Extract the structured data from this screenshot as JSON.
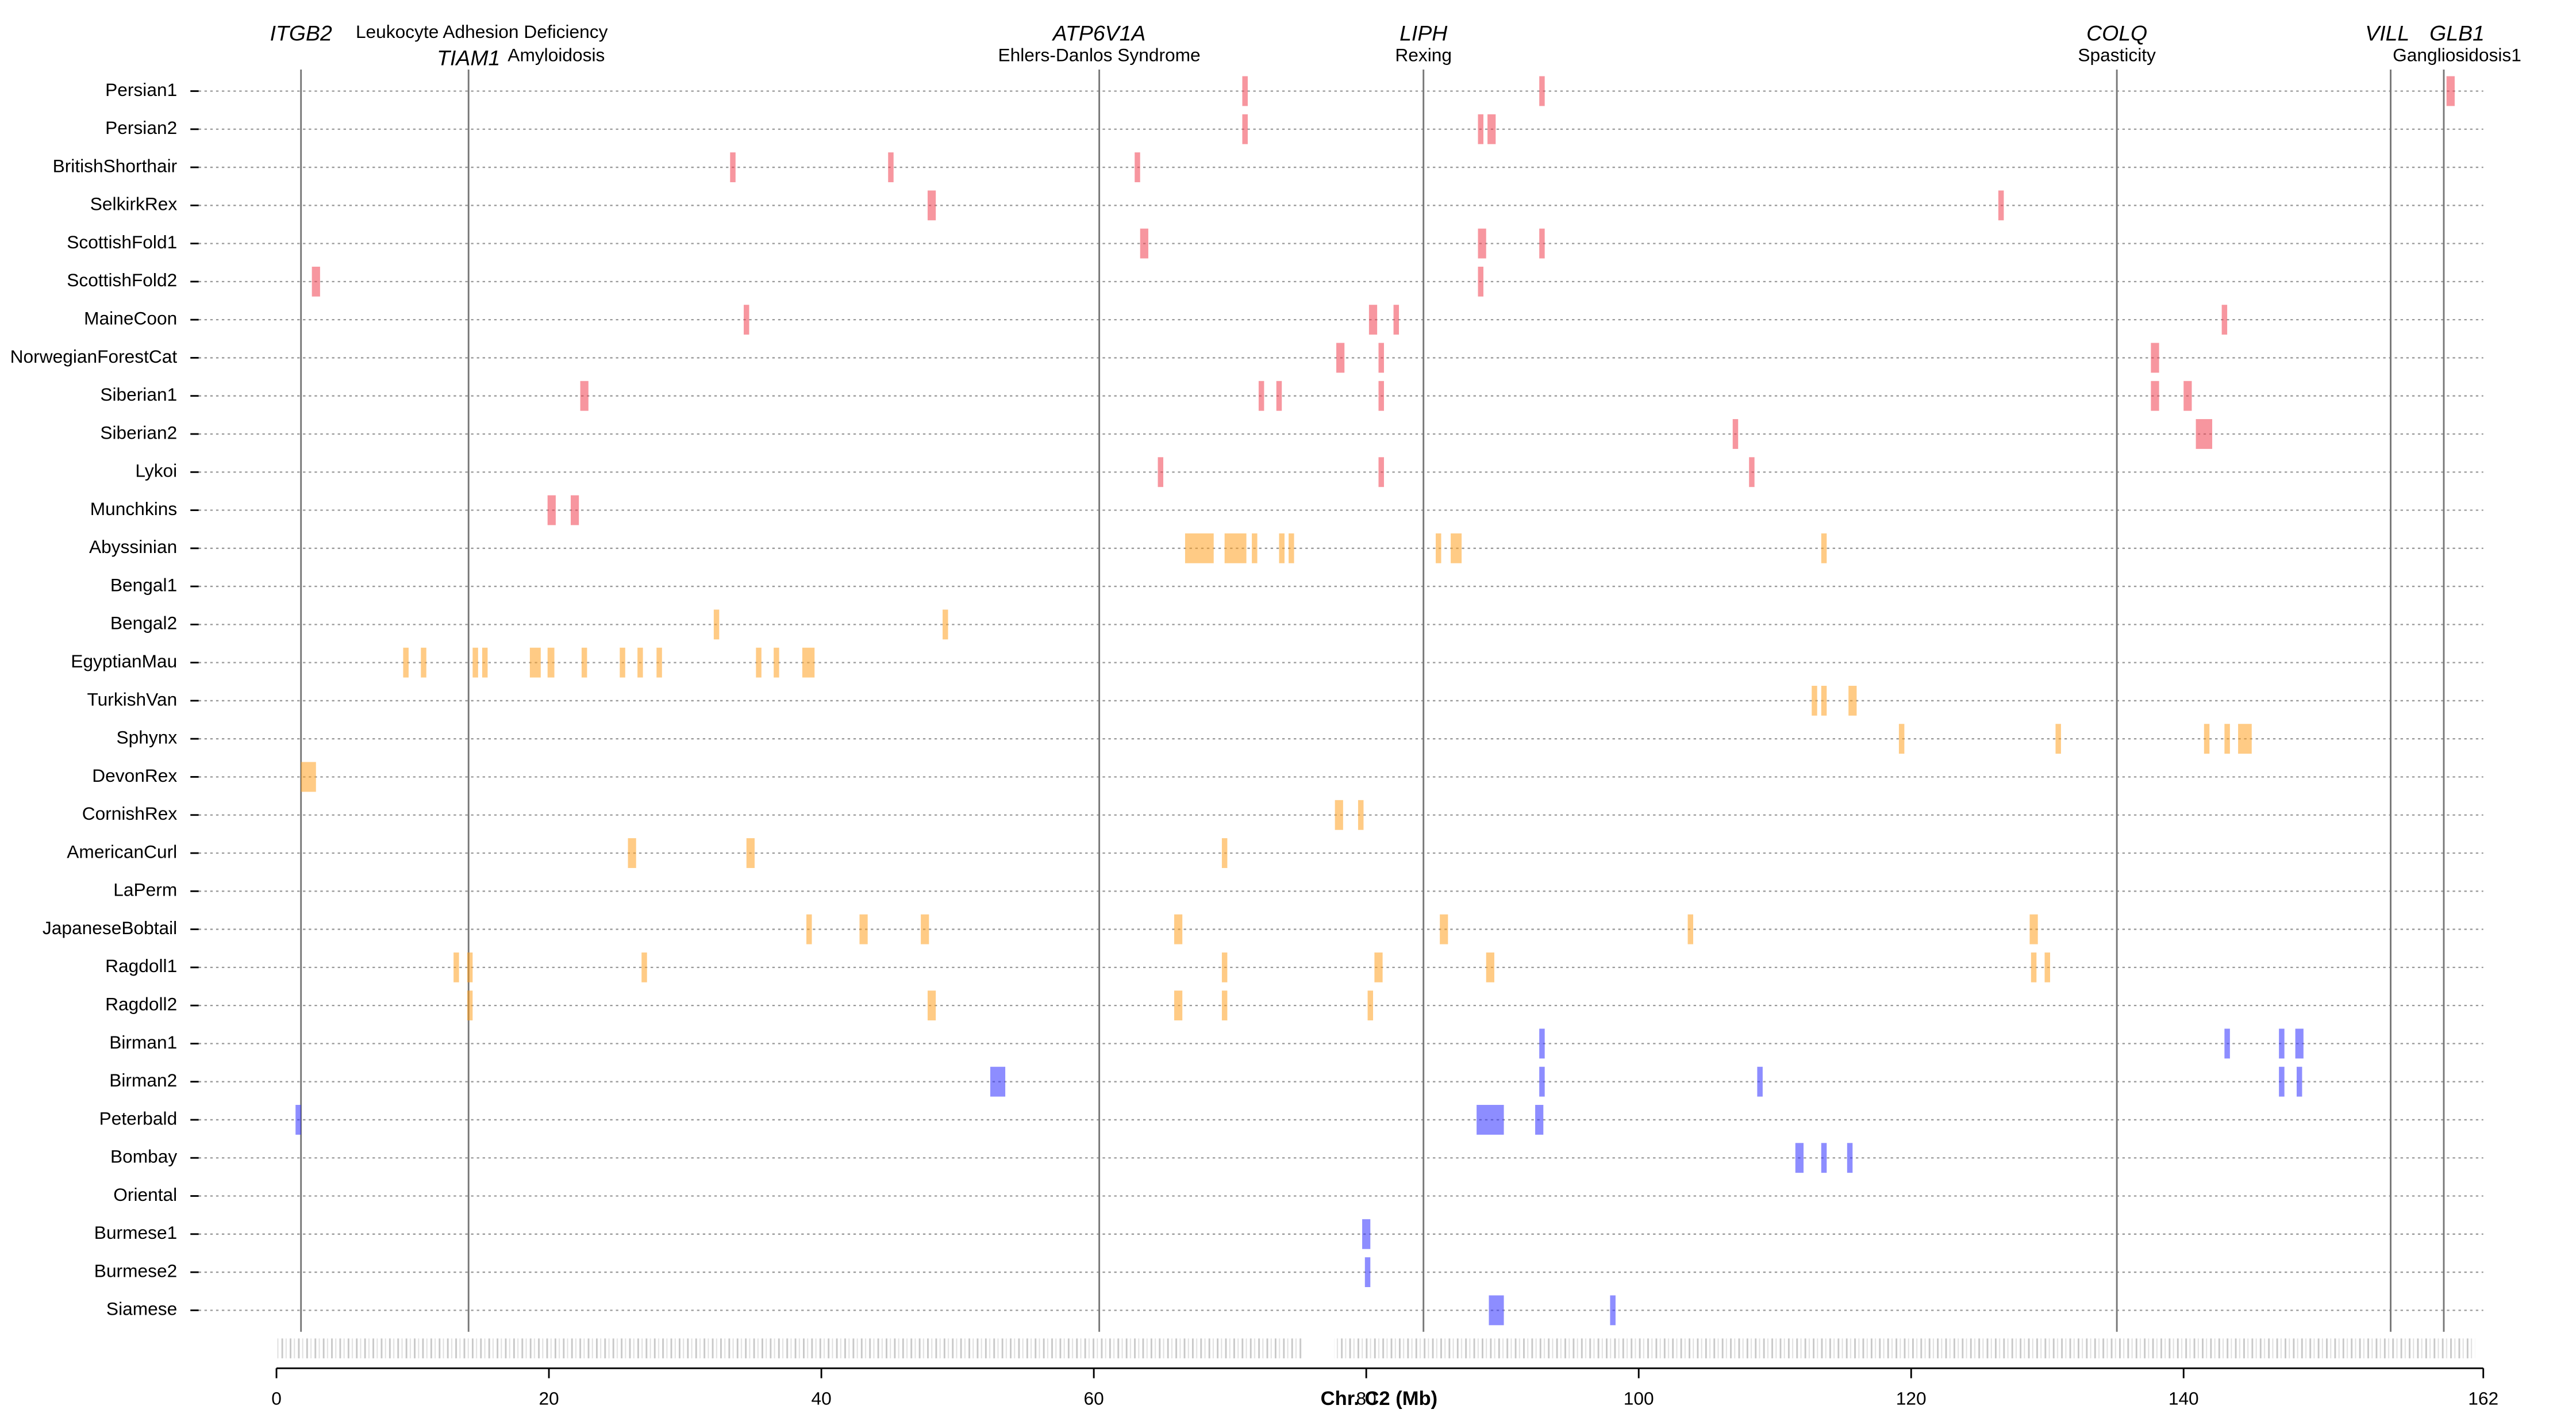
{
  "chart_data": {
    "type": "segments",
    "xlabel": "Chr. C2 (Mb)",
    "xlim": [
      0,
      162
    ],
    "xticks": [
      0,
      20,
      40,
      60,
      80,
      100,
      120,
      140,
      162
    ],
    "genes": [
      {
        "name": "ITGB2",
        "position": 1.8,
        "disease": "Leukocyte Adhesion Deficiency"
      },
      {
        "name": "TIAM1",
        "position": 14.1,
        "disease": "Amyloidosis"
      },
      {
        "name": "ATP6V1A",
        "position": 60.4,
        "disease": "Ehlers-Danlos Syndrome"
      },
      {
        "name": "LIPH",
        "position": 84.2,
        "disease": "Rexing"
      },
      {
        "name": "COLQ",
        "position": 135.1,
        "disease": "Spasticity"
      },
      {
        "name": "VILL",
        "position": 155.2
      },
      {
        "name": "GLB1",
        "position": 159.1,
        "disease": "Gangliosidosis1"
      }
    ],
    "rows": [
      {
        "name": "Persian1",
        "color": "#f04050",
        "segments": [
          [
            70.9,
            71.3
          ],
          [
            92.7,
            93.1
          ],
          [
            159.3,
            159.9
          ]
        ]
      },
      {
        "name": "Persian2",
        "color": "#f04050",
        "segments": [
          [
            70.9,
            71.3
          ],
          [
            88.2,
            88.6
          ],
          [
            88.9,
            89.5
          ]
        ]
      },
      {
        "name": "BritishShorthair",
        "color": "#f04050",
        "segments": [
          [
            33.3,
            33.7
          ],
          [
            44.9,
            45.3
          ],
          [
            63.0,
            63.4
          ]
        ]
      },
      {
        "name": "SelkirkRex",
        "color": "#f04050",
        "segments": [
          [
            47.8,
            48.4
          ],
          [
            126.4,
            126.8
          ]
        ]
      },
      {
        "name": "ScottishFold1",
        "color": "#f04050",
        "segments": [
          [
            63.4,
            64.0
          ],
          [
            88.2,
            88.8
          ],
          [
            92.7,
            93.1
          ]
        ]
      },
      {
        "name": "ScottishFold2",
        "color": "#f04050",
        "segments": [
          [
            2.6,
            3.2
          ],
          [
            88.2,
            88.6
          ]
        ]
      },
      {
        "name": "MaineCoon",
        "color": "#f04050",
        "segments": [
          [
            34.3,
            34.7
          ],
          [
            80.2,
            80.8
          ],
          [
            82.0,
            82.4
          ],
          [
            142.8,
            143.2
          ]
        ]
      },
      {
        "name": "NorwegianForestCat",
        "color": "#f04050",
        "segments": [
          [
            77.8,
            78.4
          ],
          [
            80.9,
            81.3
          ],
          [
            137.6,
            138.2
          ]
        ]
      },
      {
        "name": "Siberian1",
        "color": "#f04050",
        "segments": [
          [
            22.3,
            22.9
          ],
          [
            72.1,
            72.5
          ],
          [
            73.4,
            73.8
          ],
          [
            80.9,
            81.3
          ],
          [
            137.6,
            138.2
          ],
          [
            140.0,
            140.6
          ]
        ]
      },
      {
        "name": "Siberian2",
        "color": "#f04050",
        "segments": [
          [
            106.9,
            107.3
          ],
          [
            140.9,
            142.1
          ]
        ]
      },
      {
        "name": "Lykoi",
        "color": "#f04050",
        "segments": [
          [
            64.7,
            65.1
          ],
          [
            80.9,
            81.3
          ],
          [
            108.1,
            108.5
          ]
        ]
      },
      {
        "name": "Munchkins",
        "color": "#f04050",
        "segments": [
          [
            19.9,
            20.5
          ],
          [
            21.6,
            22.2
          ]
        ]
      },
      {
        "name": "Abyssinian",
        "color": "#ffa020",
        "segments": [
          [
            66.7,
            68.8
          ],
          [
            69.6,
            71.2
          ],
          [
            71.6,
            72.0
          ],
          [
            73.6,
            74.0
          ],
          [
            74.3,
            74.7
          ],
          [
            85.1,
            85.5
          ],
          [
            86.2,
            87.0
          ],
          [
            113.4,
            113.8
          ]
        ]
      },
      {
        "name": "Bengal1",
        "color": "#ffa020",
        "segments": []
      },
      {
        "name": "Bengal2",
        "color": "#ffa020",
        "segments": [
          [
            32.1,
            32.5
          ],
          [
            48.9,
            49.3
          ]
        ]
      },
      {
        "name": "EgyptianMau",
        "color": "#ffa020",
        "segments": [
          [
            9.3,
            9.7
          ],
          [
            10.6,
            11.0
          ],
          [
            14.4,
            14.8
          ],
          [
            15.1,
            15.5
          ],
          [
            18.6,
            19.4
          ],
          [
            19.9,
            20.4
          ],
          [
            22.4,
            22.8
          ],
          [
            25.2,
            25.6
          ],
          [
            26.5,
            26.9
          ],
          [
            27.9,
            28.3
          ],
          [
            35.2,
            35.6
          ],
          [
            36.5,
            36.9
          ],
          [
            38.6,
            39.5
          ]
        ]
      },
      {
        "name": "TurkishVan",
        "color": "#ffa020",
        "segments": [
          [
            112.7,
            113.1
          ],
          [
            113.4,
            113.8
          ],
          [
            115.4,
            116.0
          ]
        ]
      },
      {
        "name": "Sphynx",
        "color": "#ffa020",
        "segments": [
          [
            119.1,
            119.5
          ],
          [
            130.6,
            131.0
          ],
          [
            141.5,
            141.9
          ],
          [
            143.0,
            143.4
          ],
          [
            144.0,
            145.0
          ]
        ]
      },
      {
        "name": "DevonRex",
        "color": "#ffa020",
        "segments": [
          [
            1.8,
            2.9
          ]
        ]
      },
      {
        "name": "CornishRex",
        "color": "#ffa020",
        "segments": [
          [
            77.7,
            78.3
          ],
          [
            79.4,
            79.8
          ]
        ]
      },
      {
        "name": "AmericanCurl",
        "color": "#ffa020",
        "segments": [
          [
            25.8,
            26.4
          ],
          [
            34.5,
            35.1
          ],
          [
            69.4,
            69.8
          ]
        ]
      },
      {
        "name": "LaPerm",
        "color": "#ffa020",
        "segments": []
      },
      {
        "name": "JapaneseBobtail",
        "color": "#ffa020",
        "segments": [
          [
            38.9,
            39.3
          ],
          [
            42.8,
            43.4
          ],
          [
            47.3,
            47.9
          ],
          [
            65.9,
            66.5
          ],
          [
            85.4,
            86.0
          ],
          [
            103.6,
            104.0
          ],
          [
            128.7,
            129.3
          ]
        ]
      },
      {
        "name": "Ragdoll1",
        "color": "#ffa020",
        "segments": [
          [
            13.0,
            13.4
          ],
          [
            14.0,
            14.4
          ],
          [
            26.8,
            27.2
          ],
          [
            69.4,
            69.8
          ],
          [
            80.6,
            81.2
          ],
          [
            88.8,
            89.4
          ],
          [
            128.8,
            129.2
          ],
          [
            129.8,
            130.2
          ]
        ]
      },
      {
        "name": "Ragdoll2",
        "color": "#ffa020",
        "segments": [
          [
            14.0,
            14.4
          ],
          [
            47.8,
            48.4
          ],
          [
            65.9,
            66.5
          ],
          [
            69.4,
            69.8
          ],
          [
            80.1,
            80.5
          ]
        ]
      },
      {
        "name": "Birman1",
        "color": "#3030ff",
        "segments": [
          [
            92.7,
            93.1
          ],
          [
            143.0,
            143.4
          ],
          [
            147.0,
            147.4
          ],
          [
            148.2,
            148.8
          ]
        ]
      },
      {
        "name": "Birman2",
        "color": "#3030ff",
        "segments": [
          [
            52.4,
            53.5
          ],
          [
            92.7,
            93.1
          ],
          [
            108.7,
            109.1
          ],
          [
            147.0,
            147.4
          ],
          [
            148.3,
            148.7
          ]
        ]
      },
      {
        "name": "Peterbald",
        "color": "#3030ff",
        "segments": [
          [
            1.4,
            1.8
          ],
          [
            88.1,
            90.1
          ],
          [
            92.4,
            93.0
          ]
        ]
      },
      {
        "name": "Bombay",
        "color": "#3030ff",
        "segments": [
          [
            111.5,
            112.1
          ],
          [
            113.4,
            113.8
          ],
          [
            115.3,
            115.7
          ]
        ]
      },
      {
        "name": "Oriental",
        "color": "#3030ff",
        "segments": []
      },
      {
        "name": "Burmese1",
        "color": "#3030ff",
        "segments": [
          [
            79.7,
            80.3
          ]
        ]
      },
      {
        "name": "Burmese2",
        "color": "#3030ff",
        "segments": [
          [
            79.9,
            80.3
          ]
        ]
      },
      {
        "name": "Siamese",
        "color": "#3030ff",
        "segments": [
          [
            89.0,
            90.1
          ],
          [
            97.9,
            98.3
          ]
        ]
      }
    ]
  }
}
